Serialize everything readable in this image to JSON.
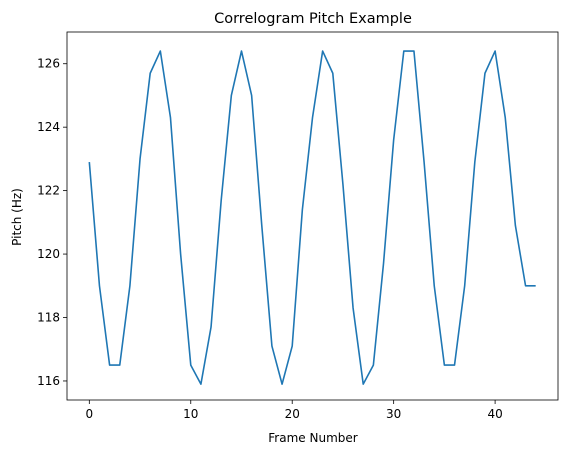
{
  "chart_data": {
    "type": "line",
    "title": "Correlogram Pitch Example",
    "xlabel": "Frame Number",
    "ylabel": "Pitch (Hz)",
    "xlim": [
      -2.2,
      46.2
    ],
    "ylim": [
      115.4,
      127.0
    ],
    "xticks": [
      0,
      10,
      20,
      30,
      40
    ],
    "yticks": [
      116,
      118,
      120,
      122,
      124,
      126
    ],
    "grid": false,
    "line_color": "#1f77b4",
    "series": [
      {
        "x": [
          0,
          1,
          2,
          3,
          4,
          5,
          6,
          7,
          8,
          9,
          10,
          11,
          12,
          13,
          14,
          15,
          16,
          17,
          18,
          19,
          20,
          21,
          22,
          23,
          24,
          25,
          26,
          27,
          28,
          29,
          30,
          31,
          32,
          33,
          34,
          35,
          36,
          37,
          38,
          39,
          40,
          41,
          42,
          43,
          44
        ],
        "values": [
          122.9,
          119.0,
          116.5,
          116.5,
          119.0,
          123.0,
          125.7,
          126.4,
          124.3,
          120.0,
          116.5,
          115.9,
          117.7,
          121.7,
          125.0,
          126.4,
          125.0,
          120.9,
          117.1,
          115.9,
          117.1,
          121.4,
          124.3,
          126.4,
          125.7,
          122.2,
          118.3,
          115.9,
          116.5,
          119.7,
          123.6,
          126.4,
          126.4,
          122.9,
          119.0,
          116.5,
          116.5,
          119.0,
          122.9,
          125.7,
          126.4,
          124.3,
          120.9,
          119.0,
          119.0
        ]
      }
    ]
  }
}
